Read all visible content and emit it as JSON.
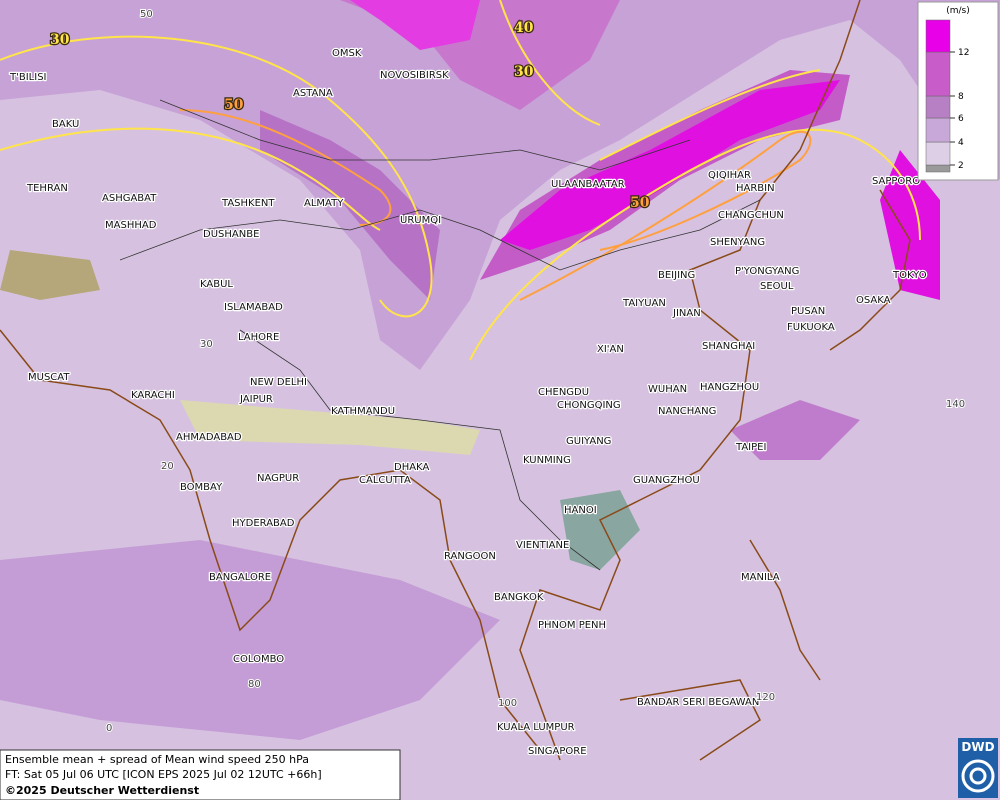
{
  "legend": {
    "unit": "(m/s)",
    "levels": [
      2,
      4,
      6,
      8,
      12
    ],
    "colors": [
      "#9a9a9a",
      "#ddd0e6",
      "#c8a8d8",
      "#b77fc4",
      "#c85cc8",
      "#e800e8"
    ]
  },
  "cities": [
    "OMSK",
    "NOVOSIBIRSK",
    "T'BILISI",
    "ASTANA",
    "BAKU",
    "TEHRAN",
    "ASHGABAT",
    "TASHKENT",
    "ALMATY",
    "URUMQI",
    "MASHHAD",
    "DUSHANBE",
    "ULAANBAATAR",
    "QIQIHAR",
    "HARBIN",
    "CHANGCHUN",
    "SAPPORO",
    "SHENYANG",
    "BEIJING",
    "P'YONGYANG",
    "SEOUL",
    "TOKYO",
    "KABUL",
    "ISLAMABAD",
    "TAIYUAN",
    "JINAN",
    "PUSAN",
    "OSAKA",
    "FUKUOKA",
    "LAHORE",
    "XI'AN",
    "MUSCAT",
    "NEW DELHI",
    "SHANGHAI",
    "HANGZHOU",
    "WUHAN",
    "CHENGDU",
    "KARACHI",
    "JAIPUR",
    "CHONGQING",
    "KATHMANDU",
    "NANCHANG",
    "AHMADABAD",
    "GUIYANG",
    "TAIPEI",
    "KUNMING",
    "DHAKA",
    "NAGPUR",
    "CALCUTTA",
    "GUANGZHOU",
    "BOMBAY",
    "HANOI",
    "HYDERABAD",
    "RANGOON",
    "VIENTIANE",
    "BANGALORE",
    "MANILA",
    "BANGKOK",
    "PHNOM PENH",
    "COLOMBO",
    "BANDAR SERI BEGAWAN",
    "KUALA LUMPUR",
    "SINGAPORE"
  ],
  "contour_labels": [
    30,
    40,
    30,
    50,
    50
  ],
  "grid_labels": [
    50,
    30,
    20,
    80,
    100,
    120,
    140,
    0
  ],
  "footer": {
    "line1": "Ensemble mean + spread of Mean wind speed 250 hPa",
    "line2": "FT: Sat 05 Jul 06 UTC [ICON EPS 2025 Jul 02 12UTC +66h]",
    "line3": "©2025 Deutscher Wetterdienst"
  },
  "logo": "DWD"
}
